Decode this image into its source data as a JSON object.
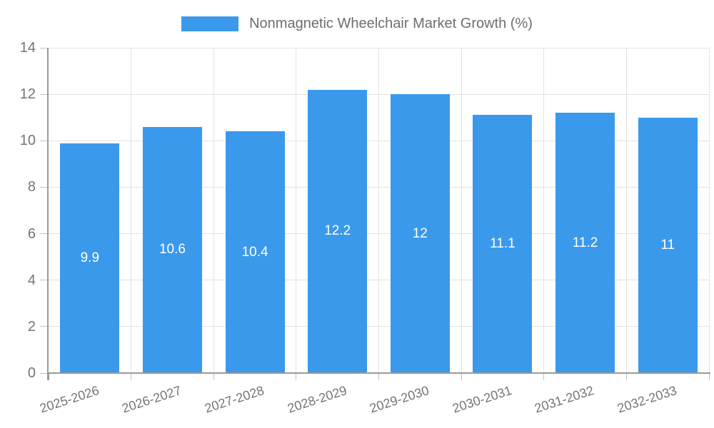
{
  "chart_data": {
    "type": "bar",
    "title": "",
    "legend_label": "Nonmagnetic Wheelchair Market Growth (%)",
    "legend_position": "top",
    "categories": [
      "2025-2026",
      "2026-2027",
      "2027-2028",
      "2028-2029",
      "2029-2030",
      "2030-2031",
      "2031-2032",
      "2032-2033"
    ],
    "values": [
      9.9,
      10.6,
      10.4,
      12.2,
      12,
      11.1,
      11.2,
      11
    ],
    "value_labels": [
      "9.9",
      "10.6",
      "10.4",
      "12.2",
      "12",
      "11.1",
      "11.2",
      "11"
    ],
    "xlabel": "",
    "ylabel": "",
    "ylim": [
      0,
      14
    ],
    "yticks": [
      0,
      2,
      4,
      6,
      8,
      10,
      12,
      14
    ],
    "grid": true,
    "colors": {
      "bar": "#3b99ec",
      "grid": "#e3e3e3",
      "axis": "#9a9a9a",
      "tick": "#c2c2c2",
      "tick_label": "#757575",
      "value_label": "#ffffff",
      "legend_text": "#6e6e6e",
      "background": "#ffffff"
    }
  }
}
